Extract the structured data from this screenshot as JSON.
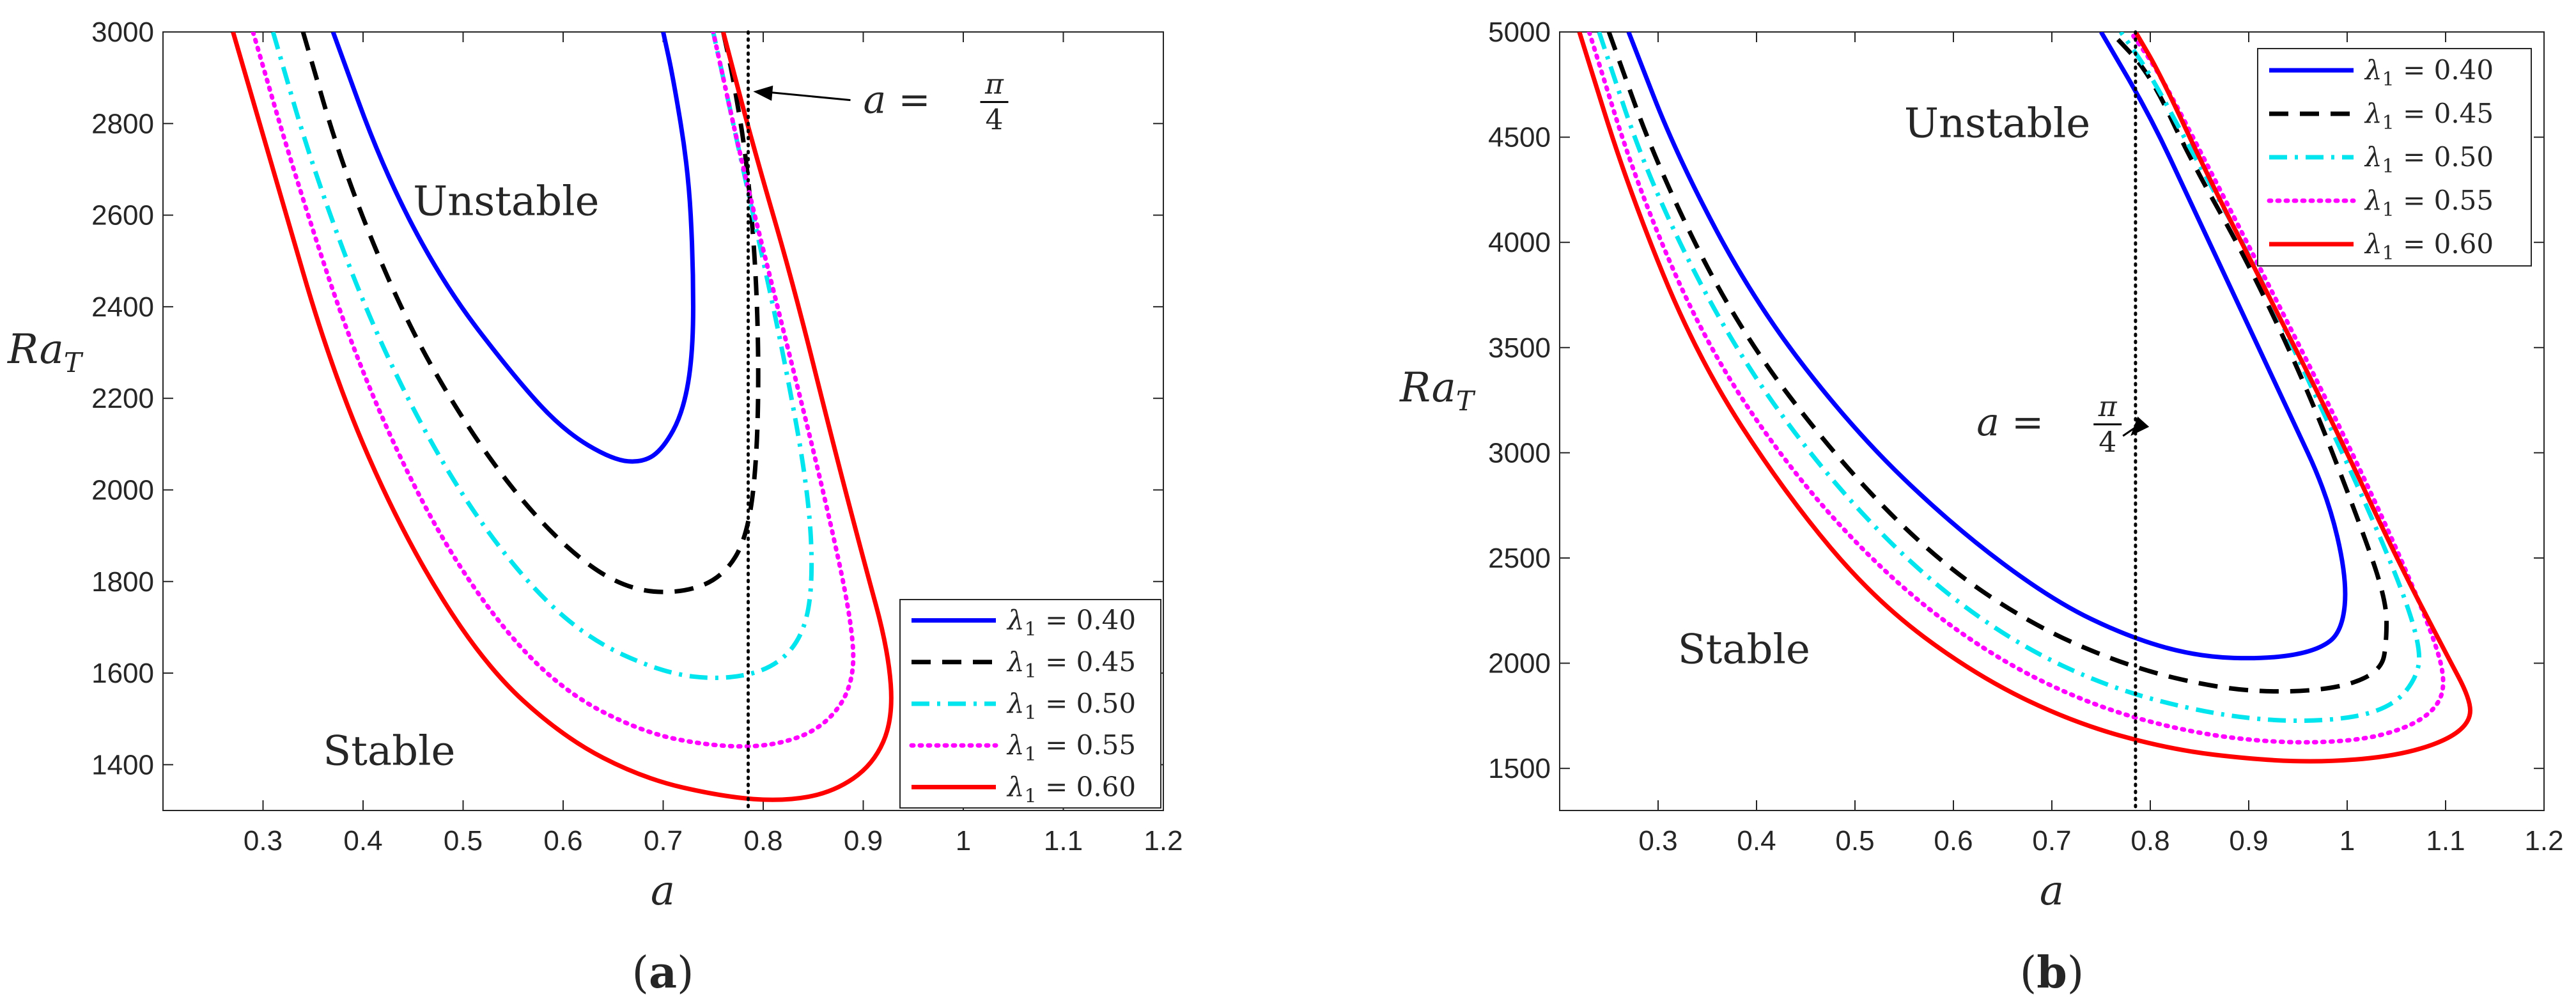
{
  "chart_data": [
    {
      "type": "line",
      "panel_label": {
        "open": "(",
        "letter": "a",
        "close": ")"
      },
      "xlabel": "a",
      "ylabel": "Ra",
      "ylabel_sub": "T",
      "xlim": [
        0.2,
        1.2
      ],
      "ylim": [
        1300,
        3000
      ],
      "xticks": [
        0.3,
        0.4,
        0.5,
        0.6,
        0.7,
        0.8,
        0.9,
        1.0,
        1.1,
        1.2
      ],
      "xtick_labels": [
        "0.3",
        "0.4",
        "0.5",
        "0.6",
        "0.7",
        "0.8",
        "0.9",
        "1",
        "1.1",
        "1.2"
      ],
      "yticks": [
        1400,
        1600,
        1800,
        2000,
        2200,
        2400,
        2600,
        2800,
        3000
      ],
      "ytick_labels": [
        "1400",
        "1600",
        "1800",
        "2000",
        "2200",
        "2400",
        "2600",
        "2800",
        "3000"
      ],
      "vline": {
        "x": 0.785,
        "style": "dotted"
      },
      "annotation": {
        "text_prefix": "a = ",
        "numerator": "π",
        "denominator": "4",
        "arrow_tip": [
          0.79,
          2870
        ],
        "text_anchor": [
          0.9,
          2840
        ]
      },
      "regions": [
        {
          "text": "Unstable",
          "x": 0.45,
          "y": 2600
        },
        {
          "text": "Stable",
          "x": 0.36,
          "y": 1400
        }
      ],
      "legend": {
        "position": "bottom-right"
      },
      "series": [
        {
          "name": "λ₁ = 0.40",
          "legend_sub": "1",
          "legend_value": "0.40",
          "color": "#0000ff",
          "dash": "solid",
          "points": [
            [
              0.37,
              3000
            ],
            [
              0.42,
              2700
            ],
            [
              0.48,
              2450
            ],
            [
              0.55,
              2250
            ],
            [
              0.6,
              2130
            ],
            [
              0.65,
              2065
            ],
            [
              0.68,
              2060
            ],
            [
              0.7,
              2090
            ],
            [
              0.72,
              2170
            ],
            [
              0.73,
              2300
            ],
            [
              0.73,
              2500
            ],
            [
              0.725,
              2700
            ],
            [
              0.71,
              2900
            ],
            [
              0.7,
              3000
            ]
          ]
        },
        {
          "name": "λ₁ = 0.45",
          "legend_sub": "1",
          "legend_value": "0.45",
          "color": "#000000",
          "dash": "dashed",
          "points": [
            [
              0.34,
              3000
            ],
            [
              0.38,
              2700
            ],
            [
              0.44,
              2380
            ],
            [
              0.5,
              2150
            ],
            [
              0.56,
              1970
            ],
            [
              0.62,
              1840
            ],
            [
              0.67,
              1780
            ],
            [
              0.72,
              1775
            ],
            [
              0.76,
              1810
            ],
            [
              0.785,
              1900
            ],
            [
              0.795,
              2100
            ],
            [
              0.795,
              2400
            ],
            [
              0.785,
              2700
            ],
            [
              0.77,
              2900
            ],
            [
              0.76,
              3000
            ]
          ]
        },
        {
          "name": "λ₁ = 0.50",
          "legend_sub": "1",
          "legend_value": "0.50",
          "color": "#00e5ee",
          "dash": "dashdot",
          "points": [
            [
              0.31,
              3000
            ],
            [
              0.35,
              2700
            ],
            [
              0.41,
              2350
            ],
            [
              0.48,
              2050
            ],
            [
              0.55,
              1830
            ],
            [
              0.62,
              1680
            ],
            [
              0.7,
              1600
            ],
            [
              0.76,
              1585
            ],
            [
              0.81,
              1610
            ],
            [
              0.84,
              1680
            ],
            [
              0.85,
              1800
            ],
            [
              0.845,
              2000
            ],
            [
              0.82,
              2300
            ],
            [
              0.79,
              2600
            ],
            [
              0.76,
              2900
            ],
            [
              0.75,
              3000
            ]
          ]
        },
        {
          "name": "λ₁ = 0.55",
          "legend_sub": "1",
          "legend_value": "0.55",
          "color": "#ff00ff",
          "dash": "dotted",
          "points": [
            [
              0.29,
              3000
            ],
            [
              0.33,
              2700
            ],
            [
              0.39,
              2300
            ],
            [
              0.46,
              1960
            ],
            [
              0.53,
              1720
            ],
            [
              0.6,
              1560
            ],
            [
              0.68,
              1470
            ],
            [
              0.75,
              1440
            ],
            [
              0.81,
              1440
            ],
            [
              0.86,
              1480
            ],
            [
              0.89,
              1570
            ],
            [
              0.89,
              1700
            ],
            [
              0.86,
              2000
            ],
            [
              0.82,
              2350
            ],
            [
              0.78,
              2700
            ],
            [
              0.75,
              3000
            ]
          ]
        },
        {
          "name": "λ₁ = 0.60",
          "legend_sub": "1",
          "legend_value": "0.60",
          "color": "#ff0000",
          "dash": "solid",
          "points": [
            [
              0.27,
              3000
            ],
            [
              0.31,
              2700
            ],
            [
              0.37,
              2250
            ],
            [
              0.44,
              1900
            ],
            [
              0.52,
              1620
            ],
            [
              0.6,
              1460
            ],
            [
              0.68,
              1370
            ],
            [
              0.76,
              1330
            ],
            [
              0.82,
              1320
            ],
            [
              0.87,
              1340
            ],
            [
              0.91,
              1400
            ],
            [
              0.93,
              1500
            ],
            [
              0.925,
              1650
            ],
            [
              0.9,
              1850
            ],
            [
              0.87,
              2100
            ],
            [
              0.83,
              2450
            ],
            [
              0.79,
              2750
            ],
            [
              0.76,
              3000
            ]
          ]
        }
      ]
    },
    {
      "type": "line",
      "panel_label": {
        "open": "(",
        "letter": "b",
        "close": ")"
      },
      "xlabel": "a",
      "ylabel": "Ra",
      "ylabel_sub": "T",
      "xlim": [
        0.2,
        1.2
      ],
      "ylim": [
        1300,
        5000
      ],
      "xticks": [
        0.3,
        0.4,
        0.5,
        0.6,
        0.7,
        0.8,
        0.9,
        1.0,
        1.1,
        1.2
      ],
      "xtick_labels": [
        "0.3",
        "0.4",
        "0.5",
        "0.6",
        "0.7",
        "0.8",
        "0.9",
        "1",
        "1.1",
        "1.2"
      ],
      "yticks": [
        1500,
        2000,
        2500,
        3000,
        3500,
        4000,
        4500,
        5000
      ],
      "ytick_labels": [
        "1500",
        "2000",
        "2500",
        "3000",
        "3500",
        "4000",
        "4500",
        "5000"
      ],
      "vline": {
        "x": 0.785,
        "style": "dotted"
      },
      "annotation": {
        "text_prefix": "a = ",
        "numerator": "π",
        "denominator": "4",
        "arrow_tip": [
          0.78,
          3080
        ],
        "text_anchor": [
          0.63,
          3120
        ]
      },
      "regions": [
        {
          "text": "Unstable",
          "x": 0.55,
          "y": 4500
        },
        {
          "text": "Stable",
          "x": 0.32,
          "y": 2000
        }
      ],
      "legend": {
        "position": "top-right"
      },
      "series": [
        {
          "name": "λ₁ = 0.40",
          "legend_sub": "1",
          "legend_value": "0.40",
          "color": "#0000ff",
          "dash": "solid",
          "points": [
            [
              0.27,
              5000
            ],
            [
              0.32,
              4400
            ],
            [
              0.4,
              3700
            ],
            [
              0.5,
              3100
            ],
            [
              0.6,
              2650
            ],
            [
              0.7,
              2300
            ],
            [
              0.78,
              2120
            ],
            [
              0.85,
              2030
            ],
            [
              0.92,
              2020
            ],
            [
              0.97,
              2060
            ],
            [
              0.995,
              2150
            ],
            [
              1.0,
              2400
            ],
            [
              0.98,
              2800
            ],
            [
              0.94,
              3200
            ],
            [
              0.89,
              3700
            ],
            [
              0.84,
              4200
            ],
            [
              0.8,
              4600
            ],
            [
              0.75,
              5000
            ]
          ]
        },
        {
          "name": "λ₁ = 0.45",
          "legend_sub": "1",
          "legend_value": "0.45",
          "color": "#000000",
          "dash": "dashed",
          "points": [
            [
              0.25,
              5000
            ],
            [
              0.3,
              4350
            ],
            [
              0.38,
              3600
            ],
            [
              0.48,
              2980
            ],
            [
              0.58,
              2500
            ],
            [
              0.68,
              2180
            ],
            [
              0.78,
              1980
            ],
            [
              0.87,
              1880
            ],
            [
              0.94,
              1860
            ],
            [
              1.0,
              1890
            ],
            [
              1.035,
              1970
            ],
            [
              1.04,
              2100
            ],
            [
              1.04,
              2300
            ],
            [
              1.01,
              2700
            ],
            [
              0.96,
              3300
            ],
            [
              0.9,
              3900
            ],
            [
              0.84,
              4400
            ],
            [
              0.8,
              4800
            ],
            [
              0.76,
              5000
            ]
          ]
        },
        {
          "name": "λ₁ = 0.50",
          "legend_sub": "1",
          "legend_value": "0.50",
          "color": "#00e5ee",
          "dash": "dashdot",
          "points": [
            [
              0.24,
              5000
            ],
            [
              0.29,
              4300
            ],
            [
              0.37,
              3550
            ],
            [
              0.46,
              2950
            ],
            [
              0.56,
              2450
            ],
            [
              0.66,
              2100
            ],
            [
              0.76,
              1880
            ],
            [
              0.86,
              1760
            ],
            [
              0.94,
              1720
            ],
            [
              1.01,
              1740
            ],
            [
              1.05,
              1810
            ],
            [
              1.07,
              1930
            ],
            [
              1.075,
              2050
            ],
            [
              1.06,
              2300
            ],
            [
              1.02,
              2750
            ],
            [
              0.96,
              3350
            ],
            [
              0.9,
              3950
            ],
            [
              0.84,
              4450
            ],
            [
              0.8,
              4800
            ],
            [
              0.77,
              5000
            ]
          ]
        },
        {
          "name": "λ₁ = 0.55",
          "legend_sub": "1",
          "legend_value": "0.55",
          "color": "#ff00ff",
          "dash": "dotted",
          "points": [
            [
              0.23,
              5000
            ],
            [
              0.28,
              4250
            ],
            [
              0.35,
              3500
            ],
            [
              0.44,
              2880
            ],
            [
              0.54,
              2380
            ],
            [
              0.64,
              2030
            ],
            [
              0.74,
              1800
            ],
            [
              0.84,
              1670
            ],
            [
              0.93,
              1620
            ],
            [
              1.01,
              1630
            ],
            [
              1.06,
              1690
            ],
            [
              1.09,
              1780
            ],
            [
              1.1,
              1900
            ],
            [
              1.09,
              2100
            ],
            [
              1.05,
              2550
            ],
            [
              0.99,
              3150
            ],
            [
              0.92,
              3800
            ],
            [
              0.86,
              4350
            ],
            [
              0.81,
              4800
            ],
            [
              0.78,
              5000
            ]
          ]
        },
        {
          "name": "λ₁ = 0.60",
          "legend_sub": "1",
          "legend_value": "0.60",
          "color": "#ff0000",
          "dash": "solid",
          "points": [
            [
              0.22,
              5000
            ],
            [
              0.27,
              4250
            ],
            [
              0.34,
              3450
            ],
            [
              0.43,
              2800
            ],
            [
              0.52,
              2300
            ],
            [
              0.62,
              1950
            ],
            [
              0.72,
              1720
            ],
            [
              0.82,
              1590
            ],
            [
              0.91,
              1540
            ],
            [
              0.98,
              1530
            ],
            [
              1.05,
              1560
            ],
            [
              1.1,
              1630
            ],
            [
              1.125,
              1720
            ],
            [
              1.125,
              1830
            ],
            [
              1.1,
              2050
            ],
            [
              1.05,
              2500
            ],
            [
              0.99,
              3100
            ],
            [
              0.92,
              3750
            ],
            [
              0.86,
              4300
            ],
            [
              0.81,
              4800
            ],
            [
              0.785,
              5000
            ]
          ]
        }
      ]
    }
  ]
}
